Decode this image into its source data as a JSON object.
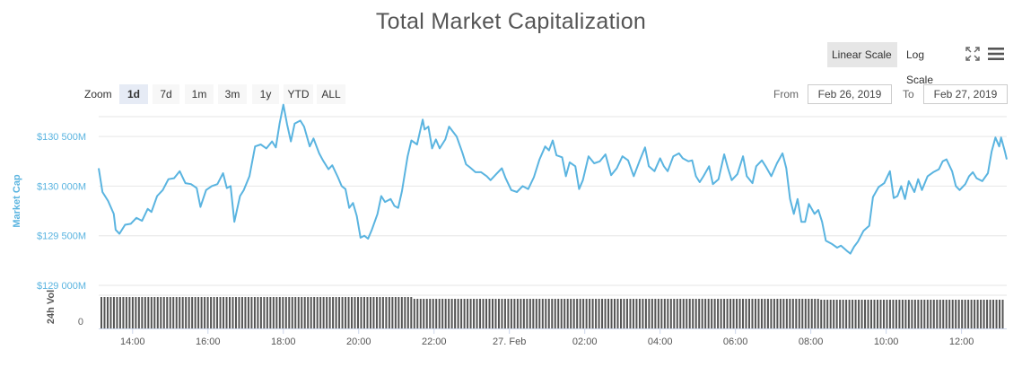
{
  "title": "Total Market Capitalization",
  "toolbar": {
    "linear_label": "Linear Scale",
    "log_label": "Log Scale",
    "fullscreen_icon": "fullscreen-icon",
    "menu_icon": "menu-icon"
  },
  "zoom": {
    "label": "Zoom",
    "buttons": [
      "1d",
      "7d",
      "1m",
      "3m",
      "1y",
      "YTD",
      "ALL"
    ],
    "selected": "1d"
  },
  "range": {
    "from_label": "From",
    "from_value": "Feb 26, 2019",
    "to_label": "To",
    "to_value": "Feb 27, 2019"
  },
  "colors": {
    "series": "#5ab4e0",
    "volume": "#555555",
    "grid": "#e6e6e6",
    "axis_label": "#5ab4e0"
  },
  "chart_data": {
    "type": "line",
    "title": "Total Market Capitalization",
    "ylabel": "Market Cap",
    "y_ticks": [
      "$129 000M",
      "$129 500M",
      "$130 000M",
      "$130 500M"
    ],
    "y_tick_values": [
      129000,
      129500,
      130000,
      130500
    ],
    "ylim": [
      129000,
      130700
    ],
    "x_tick_labels": [
      "14:00",
      "16:00",
      "18:00",
      "20:00",
      "22:00",
      "27. Feb",
      "02:00",
      "04:00",
      "06:00",
      "08:00",
      "10:00",
      "12:00"
    ],
    "x_tick_hours": [
      14,
      16,
      18,
      20,
      22,
      24,
      26,
      28,
      30,
      32,
      34,
      36
    ],
    "xlim_hours": [
      13.1,
      37.2
    ],
    "grid": true,
    "legend": "none",
    "series": [
      {
        "values": [
          [
            13.1,
            130180
          ],
          [
            13.2,
            129940
          ],
          [
            13.35,
            129850
          ],
          [
            13.5,
            129720
          ],
          [
            13.55,
            129560
          ],
          [
            13.65,
            129520
          ],
          [
            13.8,
            129610
          ],
          [
            13.95,
            129620
          ],
          [
            14.1,
            129680
          ],
          [
            14.25,
            129650
          ],
          [
            14.4,
            129770
          ],
          [
            14.5,
            129740
          ],
          [
            14.65,
            129900
          ],
          [
            14.8,
            129960
          ],
          [
            14.95,
            130070
          ],
          [
            15.1,
            130080
          ],
          [
            15.25,
            130150
          ],
          [
            15.4,
            130030
          ],
          [
            15.55,
            130020
          ],
          [
            15.7,
            129980
          ],
          [
            15.8,
            129790
          ],
          [
            15.95,
            129960
          ],
          [
            16.1,
            130000
          ],
          [
            16.25,
            130020
          ],
          [
            16.4,
            130130
          ],
          [
            16.5,
            129980
          ],
          [
            16.6,
            130000
          ],
          [
            16.7,
            129640
          ],
          [
            16.85,
            129900
          ],
          [
            16.95,
            129960
          ],
          [
            17.1,
            130100
          ],
          [
            17.25,
            130400
          ],
          [
            17.4,
            130420
          ],
          [
            17.55,
            130380
          ],
          [
            17.7,
            130450
          ],
          [
            17.8,
            130390
          ],
          [
            17.9,
            130630
          ],
          [
            18.0,
            130820
          ],
          [
            18.1,
            130620
          ],
          [
            18.2,
            130450
          ],
          [
            18.3,
            130630
          ],
          [
            18.45,
            130660
          ],
          [
            18.55,
            130600
          ],
          [
            18.7,
            130400
          ],
          [
            18.8,
            130480
          ],
          [
            18.95,
            130330
          ],
          [
            19.05,
            130260
          ],
          [
            19.2,
            130170
          ],
          [
            19.3,
            130210
          ],
          [
            19.45,
            130090
          ],
          [
            19.55,
            130000
          ],
          [
            19.65,
            129970
          ],
          [
            19.75,
            129780
          ],
          [
            19.85,
            129830
          ],
          [
            19.95,
            129700
          ],
          [
            20.05,
            129480
          ],
          [
            20.15,
            129500
          ],
          [
            20.25,
            129470
          ],
          [
            20.35,
            129560
          ],
          [
            20.5,
            129720
          ],
          [
            20.6,
            129900
          ],
          [
            20.7,
            129840
          ],
          [
            20.85,
            129870
          ],
          [
            20.95,
            129800
          ],
          [
            21.05,
            129780
          ],
          [
            21.15,
            129950
          ],
          [
            21.3,
            130300
          ],
          [
            21.4,
            130460
          ],
          [
            21.55,
            130420
          ],
          [
            21.7,
            130670
          ],
          [
            21.75,
            130570
          ],
          [
            21.85,
            130600
          ],
          [
            21.95,
            130380
          ],
          [
            22.05,
            130470
          ],
          [
            22.15,
            130380
          ],
          [
            22.3,
            130470
          ],
          [
            22.4,
            130600
          ],
          [
            22.5,
            130550
          ],
          [
            22.6,
            130500
          ],
          [
            22.75,
            130340
          ],
          [
            22.85,
            130220
          ],
          [
            22.95,
            130190
          ],
          [
            23.1,
            130140
          ],
          [
            23.25,
            130140
          ],
          [
            23.4,
            130100
          ],
          [
            23.5,
            130060
          ],
          [
            23.65,
            130120
          ],
          [
            23.8,
            130180
          ],
          [
            23.9,
            130080
          ],
          [
            24.05,
            129960
          ],
          [
            24.2,
            129940
          ],
          [
            24.35,
            130000
          ],
          [
            24.5,
            129970
          ],
          [
            24.65,
            130090
          ],
          [
            24.8,
            130270
          ],
          [
            24.95,
            130400
          ],
          [
            25.05,
            130360
          ],
          [
            25.15,
            130460
          ],
          [
            25.25,
            130310
          ],
          [
            25.4,
            130290
          ],
          [
            25.5,
            130100
          ],
          [
            25.6,
            130240
          ],
          [
            25.75,
            130200
          ],
          [
            25.85,
            129970
          ],
          [
            25.95,
            130060
          ],
          [
            26.1,
            130300
          ],
          [
            26.25,
            130230
          ],
          [
            26.4,
            130250
          ],
          [
            26.55,
            130320
          ],
          [
            26.7,
            130110
          ],
          [
            26.85,
            130180
          ],
          [
            27.0,
            130300
          ],
          [
            27.15,
            130260
          ],
          [
            27.3,
            130100
          ],
          [
            27.45,
            130250
          ],
          [
            27.6,
            130390
          ],
          [
            27.7,
            130200
          ],
          [
            27.85,
            130150
          ],
          [
            28.0,
            130280
          ],
          [
            28.1,
            130200
          ],
          [
            28.2,
            130150
          ],
          [
            28.35,
            130300
          ],
          [
            28.5,
            130330
          ],
          [
            28.6,
            130280
          ],
          [
            28.75,
            130250
          ],
          [
            28.85,
            130260
          ],
          [
            28.95,
            130100
          ],
          [
            29.05,
            130040
          ],
          [
            29.15,
            130100
          ],
          [
            29.3,
            130200
          ],
          [
            29.4,
            130020
          ],
          [
            29.55,
            130070
          ],
          [
            29.7,
            130320
          ],
          [
            29.8,
            130180
          ],
          [
            29.9,
            130060
          ],
          [
            30.05,
            130120
          ],
          [
            30.2,
            130300
          ],
          [
            30.3,
            130100
          ],
          [
            30.45,
            130030
          ],
          [
            30.55,
            130200
          ],
          [
            30.7,
            130260
          ],
          [
            30.8,
            130200
          ],
          [
            30.95,
            130100
          ],
          [
            31.1,
            130230
          ],
          [
            31.25,
            130330
          ],
          [
            31.35,
            130180
          ],
          [
            31.45,
            129870
          ],
          [
            31.55,
            129720
          ],
          [
            31.65,
            129870
          ],
          [
            31.75,
            129640
          ],
          [
            31.85,
            129640
          ],
          [
            31.95,
            129820
          ],
          [
            32.1,
            129720
          ],
          [
            32.2,
            129760
          ],
          [
            32.3,
            129640
          ],
          [
            32.4,
            129450
          ],
          [
            32.55,
            129420
          ],
          [
            32.7,
            129380
          ],
          [
            32.8,
            129400
          ],
          [
            32.95,
            129350
          ],
          [
            33.05,
            129320
          ],
          [
            33.15,
            129390
          ],
          [
            33.25,
            129440
          ],
          [
            33.4,
            129550
          ],
          [
            33.55,
            129600
          ],
          [
            33.65,
            129890
          ],
          [
            33.8,
            129990
          ],
          [
            33.95,
            130030
          ],
          [
            34.1,
            130150
          ],
          [
            34.2,
            129880
          ],
          [
            34.3,
            129900
          ],
          [
            34.4,
            130000
          ],
          [
            34.5,
            129870
          ],
          [
            34.6,
            130050
          ],
          [
            34.75,
            129940
          ],
          [
            34.85,
            130070
          ],
          [
            34.95,
            129960
          ],
          [
            35.1,
            130100
          ],
          [
            35.25,
            130140
          ],
          [
            35.4,
            130170
          ],
          [
            35.5,
            130250
          ],
          [
            35.6,
            130270
          ],
          [
            35.75,
            130150
          ],
          [
            35.85,
            130000
          ],
          [
            35.95,
            129960
          ],
          [
            36.1,
            130020
          ],
          [
            36.2,
            130100
          ],
          [
            36.3,
            130140
          ],
          [
            36.4,
            130080
          ],
          [
            36.55,
            130050
          ],
          [
            36.7,
            130130
          ],
          [
            36.8,
            130350
          ],
          [
            36.9,
            130490
          ],
          [
            37.0,
            130400
          ],
          [
            37.05,
            130490
          ],
          [
            37.15,
            130350
          ],
          [
            37.2,
            130270
          ]
        ]
      }
    ]
  }
}
